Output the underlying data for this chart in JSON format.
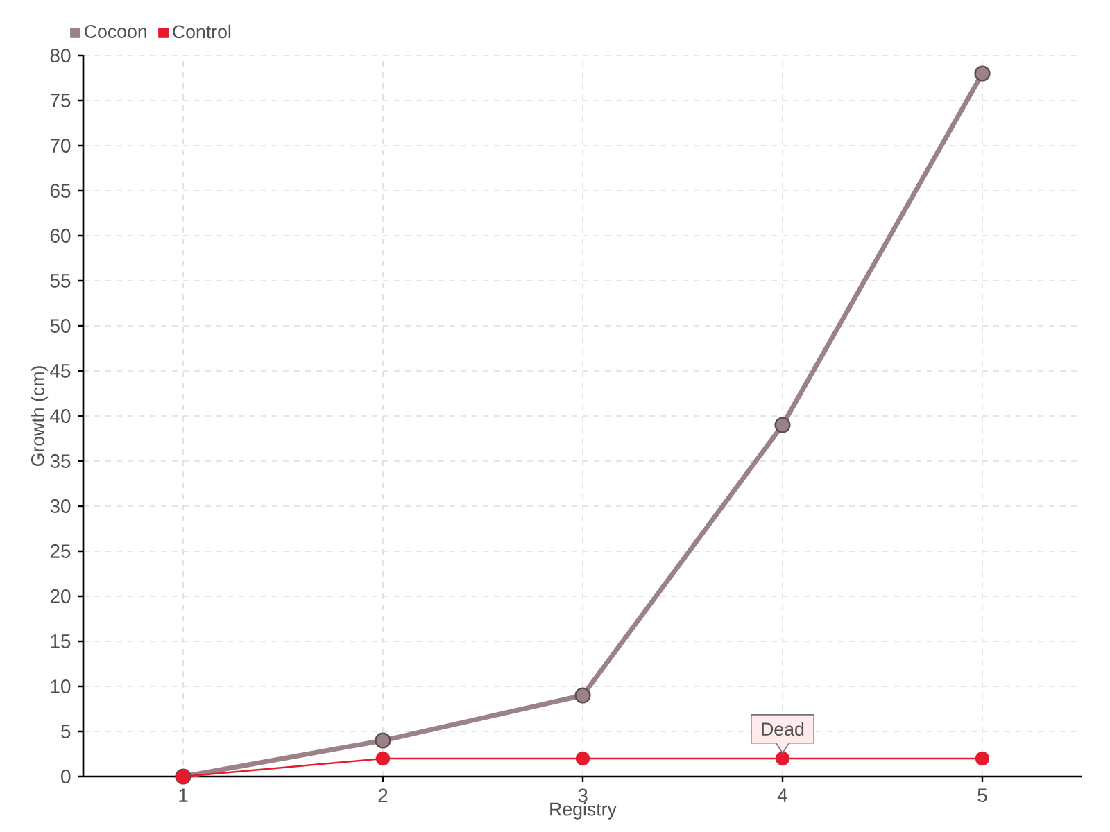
{
  "chart_data": {
    "type": "line",
    "xlabel": "Registry",
    "ylabel": "Growth (cm)",
    "x": [
      1,
      2,
      3,
      4,
      5
    ],
    "xlim": [
      0.5,
      5.5
    ],
    "xticks": [
      1,
      2,
      3,
      4,
      5
    ],
    "ylim": [
      0,
      80
    ],
    "yticks": [
      0,
      5,
      10,
      15,
      20,
      25,
      30,
      35,
      40,
      45,
      50,
      55,
      60,
      65,
      70,
      75,
      80
    ],
    "series": [
      {
        "name": "Cocoon",
        "color": "#9b8287",
        "values": [
          0,
          4,
          9,
          39,
          78
        ]
      },
      {
        "name": "Control",
        "color": "#e8192c",
        "values": [
          0,
          2,
          2,
          2,
          2
        ]
      }
    ],
    "annotations": [
      {
        "text": "Dead",
        "x": 4,
        "y": 2
      }
    ],
    "grid": true,
    "legend": "top left",
    "marker": "circle"
  }
}
